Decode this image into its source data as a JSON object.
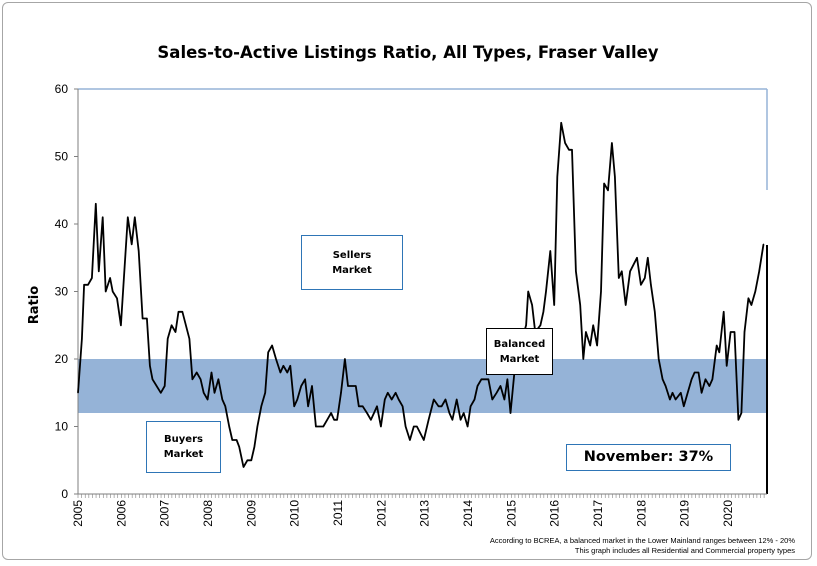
{
  "chart_data": {
    "type": "line",
    "title": "Sales-to-Active Listings Ratio, All Types, Fraser Valley",
    "xlabel": "",
    "ylabel": "Ratio",
    "ylim": [
      0,
      60
    ],
    "xlim": [
      2005,
      2020.9
    ],
    "yticks": [
      "0",
      "10",
      "20",
      "30",
      "40",
      "50",
      "60"
    ],
    "xticks": [
      "2005",
      "2006",
      "2007",
      "2008",
      "2009",
      "2010",
      "2011",
      "2012",
      "2013",
      "2014",
      "2015",
      "2016",
      "2017",
      "2018",
      "2019",
      "2020"
    ],
    "balanced_band": [
      12,
      20
    ],
    "band_color": "#95b3d7",
    "line_color": "#000000",
    "annotations": {
      "sellers": [
        "Sellers",
        "Market"
      ],
      "buyers": [
        "Buyers",
        "Market"
      ],
      "balanced": [
        "Balanced",
        "Market"
      ],
      "current": "November: 37%"
    },
    "footnotes": [
      "According to BCREA, a balanced market in the Lower Mainland ranges between 12% - 20%",
      "This graph includes all Residential and Commercial property types"
    ],
    "series": [
      {
        "name": "Sales-to-Active Ratio",
        "points": [
          [
            2005.0,
            15
          ],
          [
            2005.09,
            23
          ],
          [
            2005.14,
            31
          ],
          [
            2005.23,
            31
          ],
          [
            2005.32,
            32
          ],
          [
            2005.41,
            43
          ],
          [
            2005.48,
            33
          ],
          [
            2005.57,
            41
          ],
          [
            2005.64,
            30
          ],
          [
            2005.74,
            32
          ],
          [
            2005.8,
            30
          ],
          [
            2005.9,
            29
          ],
          [
            2005.99,
            25
          ],
          [
            2006.06,
            32
          ],
          [
            2006.15,
            41
          ],
          [
            2006.24,
            37
          ],
          [
            2006.31,
            41
          ],
          [
            2006.4,
            36
          ],
          [
            2006.49,
            26
          ],
          [
            2006.59,
            26
          ],
          [
            2006.66,
            19
          ],
          [
            2006.72,
            17
          ],
          [
            2006.91,
            15
          ],
          [
            2007.0,
            16
          ],
          [
            2007.07,
            23
          ],
          [
            2007.16,
            25
          ],
          [
            2007.25,
            24
          ],
          [
            2007.32,
            27
          ],
          [
            2007.41,
            27
          ],
          [
            2007.57,
            23
          ],
          [
            2007.64,
            17
          ],
          [
            2007.74,
            18
          ],
          [
            2007.83,
            17
          ],
          [
            2007.9,
            15
          ],
          [
            2007.99,
            14
          ],
          [
            2008.08,
            18
          ],
          [
            2008.15,
            15
          ],
          [
            2008.24,
            17
          ],
          [
            2008.33,
            14
          ],
          [
            2008.4,
            13
          ],
          [
            2008.49,
            10
          ],
          [
            2008.56,
            8
          ],
          [
            2008.66,
            8
          ],
          [
            2008.72,
            7
          ],
          [
            2008.82,
            4
          ],
          [
            2008.91,
            5
          ],
          [
            2009.0,
            5
          ],
          [
            2009.07,
            7
          ],
          [
            2009.14,
            10
          ],
          [
            2009.23,
            13
          ],
          [
            2009.32,
            15
          ],
          [
            2009.39,
            21
          ],
          [
            2009.48,
            22
          ],
          [
            2009.57,
            20
          ],
          [
            2009.67,
            18
          ],
          [
            2009.74,
            19
          ],
          [
            2009.83,
            18
          ],
          [
            2009.9,
            19
          ],
          [
            2009.99,
            13
          ],
          [
            2010.06,
            14
          ],
          [
            2010.15,
            16
          ],
          [
            2010.24,
            17
          ],
          [
            2010.31,
            13
          ],
          [
            2010.4,
            16
          ],
          [
            2010.49,
            10
          ],
          [
            2010.66,
            10
          ],
          [
            2010.75,
            11
          ],
          [
            2010.84,
            12
          ],
          [
            2010.91,
            11
          ],
          [
            2010.98,
            11
          ],
          [
            2011.07,
            15
          ],
          [
            2011.16,
            20
          ],
          [
            2011.23,
            16
          ],
          [
            2011.41,
            16
          ],
          [
            2011.48,
            13
          ],
          [
            2011.57,
            13
          ],
          [
            2011.67,
            12
          ],
          [
            2011.76,
            11
          ],
          [
            2011.83,
            12
          ],
          [
            2011.9,
            13
          ],
          [
            2011.99,
            10
          ],
          [
            2012.08,
            14
          ],
          [
            2012.15,
            15
          ],
          [
            2012.24,
            14
          ],
          [
            2012.33,
            15
          ],
          [
            2012.4,
            14
          ],
          [
            2012.49,
            13
          ],
          [
            2012.56,
            10
          ],
          [
            2012.66,
            8
          ],
          [
            2012.75,
            10
          ],
          [
            2012.82,
            10
          ],
          [
            2012.98,
            8
          ],
          [
            2013.09,
            11
          ],
          [
            2013.21,
            14
          ],
          [
            2013.32,
            13
          ],
          [
            2013.39,
            13
          ],
          [
            2013.48,
            14
          ],
          [
            2013.57,
            12
          ],
          [
            2013.64,
            11
          ],
          [
            2013.74,
            14
          ],
          [
            2013.83,
            11
          ],
          [
            2013.9,
            12
          ],
          [
            2013.99,
            10
          ],
          [
            2014.06,
            13
          ],
          [
            2014.15,
            14
          ],
          [
            2014.22,
            16
          ],
          [
            2014.31,
            17
          ],
          [
            2014.47,
            17
          ],
          [
            2014.56,
            14
          ],
          [
            2014.66,
            15
          ],
          [
            2014.75,
            16
          ],
          [
            2014.84,
            14
          ],
          [
            2014.91,
            17
          ],
          [
            2014.98,
            12
          ],
          [
            2015.07,
            18
          ],
          [
            2015.16,
            21
          ],
          [
            2015.34,
            25
          ],
          [
            2015.39,
            30
          ],
          [
            2015.48,
            28
          ],
          [
            2015.55,
            24
          ],
          [
            2015.67,
            25
          ],
          [
            2015.74,
            27
          ],
          [
            2015.8,
            30
          ],
          [
            2015.9,
            36
          ],
          [
            2015.99,
            28
          ],
          [
            2016.06,
            47
          ],
          [
            2016.15,
            55
          ],
          [
            2016.24,
            52
          ],
          [
            2016.33,
            51
          ],
          [
            2016.4,
            51
          ],
          [
            2016.49,
            33
          ],
          [
            2016.59,
            28
          ],
          [
            2016.66,
            20
          ],
          [
            2016.72,
            24
          ],
          [
            2016.82,
            22
          ],
          [
            2016.89,
            25
          ],
          [
            2016.98,
            22
          ],
          [
            2017.07,
            30
          ],
          [
            2017.14,
            46
          ],
          [
            2017.23,
            45
          ],
          [
            2017.32,
            52
          ],
          [
            2017.39,
            47
          ],
          [
            2017.48,
            32
          ],
          [
            2017.55,
            33
          ],
          [
            2017.64,
            28
          ],
          [
            2017.74,
            33
          ],
          [
            2017.9,
            35
          ],
          [
            2017.99,
            31
          ],
          [
            2018.08,
            32
          ],
          [
            2018.15,
            35
          ],
          [
            2018.22,
            31
          ],
          [
            2018.31,
            27
          ],
          [
            2018.4,
            20
          ],
          [
            2018.49,
            17
          ],
          [
            2018.56,
            16
          ],
          [
            2018.66,
            14
          ],
          [
            2018.72,
            15
          ],
          [
            2018.79,
            14
          ],
          [
            2018.91,
            15
          ],
          [
            2018.98,
            13
          ],
          [
            2019.07,
            15
          ],
          [
            2019.16,
            17
          ],
          [
            2019.23,
            18
          ],
          [
            2019.32,
            18
          ],
          [
            2019.39,
            15
          ],
          [
            2019.48,
            17
          ],
          [
            2019.57,
            16
          ],
          [
            2019.64,
            17
          ],
          [
            2019.74,
            22
          ],
          [
            2019.8,
            21
          ],
          [
            2019.9,
            27
          ],
          [
            2019.97,
            19
          ],
          [
            2020.06,
            24
          ],
          [
            2020.15,
            24
          ],
          [
            2020.24,
            11
          ],
          [
            2020.31,
            12
          ],
          [
            2020.38,
            24
          ],
          [
            2020.47,
            29
          ],
          [
            2020.54,
            28
          ],
          [
            2020.63,
            30
          ],
          [
            2020.72,
            33
          ],
          [
            2020.82,
            37
          ]
        ]
      }
    ]
  }
}
